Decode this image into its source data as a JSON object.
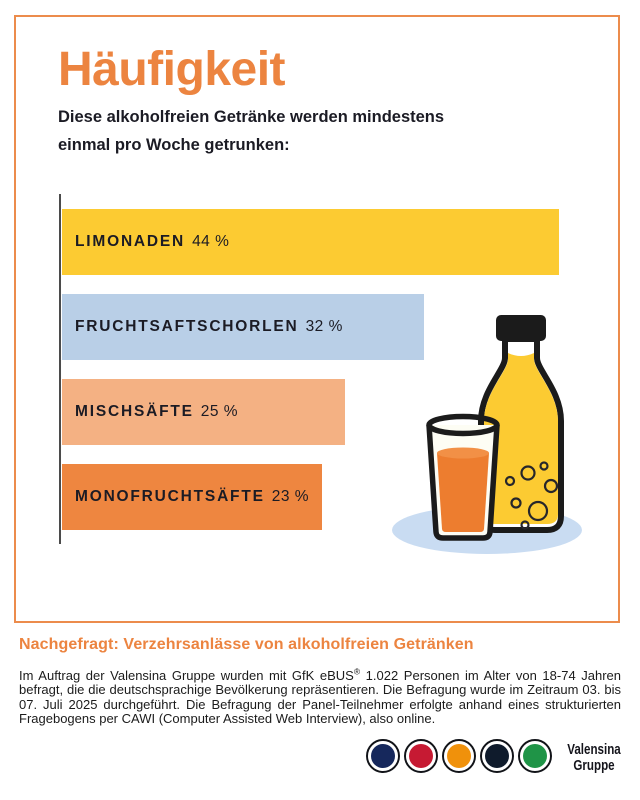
{
  "colors": {
    "accent_orange": "#EC8440",
    "frame_orange": "#EC8C4C",
    "text_dark": "#1B1B24",
    "axis_gray": "#4B4B4B",
    "shadow_blue": "#C9DCF2",
    "bottle_yellow": "#FCCB32",
    "juice_orange": "#ED7D2F"
  },
  "header": {
    "title": "Häufigkeit",
    "subtitle_lines": [
      "Diese alkoholfreien Getränke werden mindestens",
      "einmal pro Woche getrunken:"
    ]
  },
  "chart_data": {
    "type": "bar",
    "orientation": "horizontal",
    "title": "Häufigkeit",
    "subtitle": "Diese alkoholfreien Getränke werden mindestens einmal pro Woche getrunken:",
    "categories": [
      "LIMONADEN",
      "FRUCHTSAFTSCHORLEN",
      "MISCHSÄFTE",
      "MONOFRUCHTSÄFTE"
    ],
    "values": [
      44,
      32,
      25,
      23
    ],
    "value_labels": [
      "44 %",
      "32 %",
      "25 %",
      "23 %"
    ],
    "unit": "%",
    "bar_colors": [
      "#FCCB32",
      "#B9CFE7",
      "#F4B183",
      "#EE8640"
    ],
    "xlim": [
      0,
      44
    ],
    "grid": false,
    "legend": false
  },
  "footer": {
    "heading": "Nachgefragt: Verzehrsanlässe von alkoholfreien Getränken",
    "body_before_sup": "Im Auftrag der Valensina Gruppe wurden mit GfK eBUS",
    "body_sup": "®",
    "body_after_sup": " 1.022 Personen im Alter von 18-74 Jahren befragt, die die deutschsprachige Bevölkerung repräsentieren. Die Befragung wurde im Zeitraum 03. bis 07. Juli 2025 durchgeführt. Die Befragung der Panel-Teilnehmer erfolgte anhand eines strukturierten Fragebogens per CAWI (Computer Assisted Web Interview), also online."
  },
  "logo": {
    "circle_colors": [
      "#16285C",
      "#C61A33",
      "#F0910B",
      "#0F1B2C",
      "#1F9447"
    ],
    "name_lines": [
      "Valensina",
      "Gruppe"
    ]
  }
}
